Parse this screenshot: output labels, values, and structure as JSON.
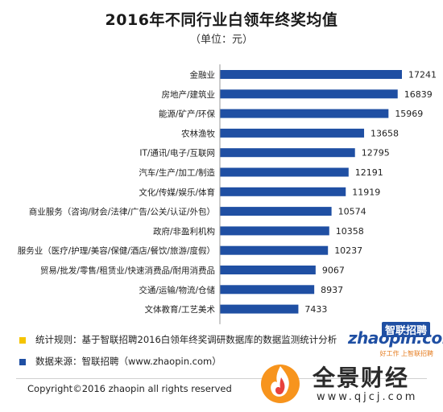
{
  "chart_data": {
    "type": "bar",
    "orientation": "horizontal",
    "title": "2016年不同行业白领年终奖均值",
    "subtitle": "（单位：元）",
    "bar_color": "#1f4fa3",
    "categories": [
      "金融业",
      "房地产/建筑业",
      "能源/矿产/环保",
      "农林渔牧",
      "IT/通讯/电子/互联网",
      "汽车/生产/加工/制造",
      "文化/传媒/娱乐/体育",
      "商业服务（咨询/财会/法律/广告/公关/认证/外包）",
      "政府/非盈利机构",
      "服务业（医疗/护理/美容/保健/酒店/餐饮/旅游/度假）",
      "贸易/批发/零售/租赁业/快速消费品/耐用消费品",
      "交通/运输/物流/仓储",
      "文体教育/工艺美术"
    ],
    "values": [
      17241,
      16839,
      15969,
      13658,
      12795,
      12191,
      11919,
      10574,
      10358,
      10237,
      9067,
      8937,
      7433
    ]
  },
  "notes": {
    "rule": "统计规则：基于智联招聘2016白领年终奖调研数据库的数据监测统计分析",
    "source": "数据来源：智联招聘（www.zhaopin.com）",
    "rule_color": "#f5c400",
    "source_color": "#1f4fa3"
  },
  "brand": {
    "zhaopin_cn": "智联招聘",
    "zhaopin_en": "zhaopin.com",
    "zhaopin_slogan": "好工作 上智联招聘",
    "qjcj_name": "全景财经",
    "qjcj_url": "www.qjcj.com"
  },
  "footer": {
    "copyright": "Copyright©2016 zhaopin all rights reserved"
  }
}
